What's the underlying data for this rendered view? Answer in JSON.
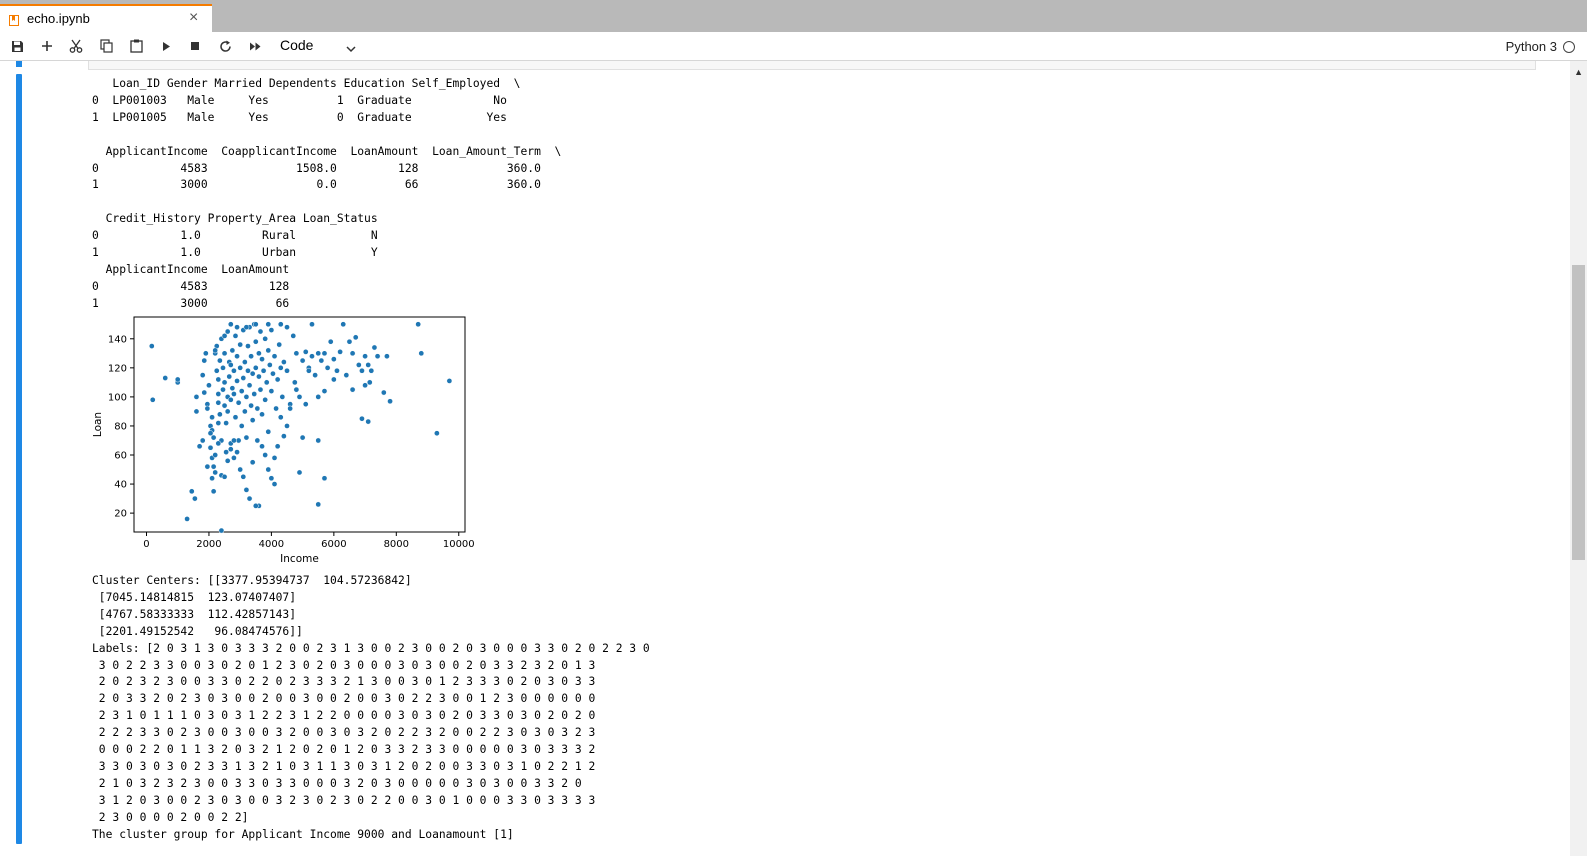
{
  "tab": {
    "title": "echo.ipynb",
    "close": "×"
  },
  "toolbar": {
    "icons": [
      "save-icon",
      "add-icon",
      "cut-icon",
      "copy-icon",
      "paste-icon",
      "run-icon",
      "stop-icon",
      "restart-icon",
      "run-all-icon",
      "chevron-down-icon"
    ],
    "cell_type": "Code",
    "kernel": "Python 3"
  },
  "output_text": "   Loan_ID Gender Married Dependents Education Self_Employed  \\\n0  LP001003   Male     Yes          1  Graduate            No\n1  LP001005   Male     Yes          0  Graduate           Yes\n\n  ApplicantIncome  CoapplicantIncome  LoanAmount  Loan_Amount_Term  \\\n0            4583             1508.0         128             360.0\n1            3000                0.0          66             360.0\n\n  Credit_History Property_Area Loan_Status\n0            1.0         Rural           N\n1            1.0         Urban           Y\n  ApplicantIncome  LoanAmount\n0            4583         128\n1            3000          66",
  "output_text2": "Cluster Centers: [[3377.95394737  104.57236842]\n [7045.14814815  123.07407407]\n [4767.58333333  112.42857143]\n [2201.49152542   96.08474576]]\nLabels: [2 0 3 1 3 0 3 3 3 2 0 0 2 3 1 3 0 0 2 3 0 0 2 0 3 0 0 0 3 3 0 2 0 2 2 3 0\n 3 0 2 2 3 3 0 0 3 0 2 0 1 2 3 0 2 0 3 0 0 0 3 0 3 0 0 2 0 3 3 2 3 2 0 1 3\n 2 0 2 3 2 3 0 0 3 3 0 2 2 0 2 3 3 3 2 1 3 0 0 3 0 1 2 3 3 3 0 2 0 3 0 3 3\n 2 0 3 3 2 0 2 3 0 3 0 0 2 0 0 3 0 0 2 0 0 3 0 2 2 3 0 0 1 2 3 0 0 0 0 0 0\n 2 3 1 0 1 1 1 0 3 0 3 1 2 2 3 1 2 2 0 0 0 0 3 0 3 0 2 0 3 3 0 3 0 2 0 2 0\n 2 2 2 3 3 0 2 3 0 0 3 0 0 3 2 0 0 3 0 3 2 0 2 2 3 2 0 0 2 2 3 0 3 0 3 2 3\n 0 0 0 2 2 0 1 1 3 2 0 3 2 1 2 0 2 0 1 2 0 3 3 2 3 3 0 0 0 0 0 3 0 3 3 3 2\n 3 3 0 3 0 3 0 2 3 3 1 3 2 1 0 3 1 1 3 0 3 1 2 0 2 0 0 3 3 0 3 1 0 2 2 1 2\n 2 1 0 3 2 3 2 3 0 0 3 3 0 3 3 0 0 0 3 2 0 3 0 0 0 0 0 3 0 3 0 0 3 3 2 0\n 3 1 2 0 3 0 0 2 3 0 3 0 0 3 2 3 0 2 3 0 2 2 0 0 3 0 1 0 0 0 3 3 0 3 3 3 3\n 2 3 0 0 0 0 2 0 0 2 2]\nThe cluster group for Applicant Income 9000 and Loanamount [1]",
  "chart_data": {
    "type": "scatter",
    "xlabel": "Income",
    "ylabel": "Loan",
    "xlim": [
      -400,
      10200
    ],
    "ylim": [
      7,
      155
    ],
    "xticks": [
      0,
      2000,
      4000,
      6000,
      8000,
      10000
    ],
    "yticks": [
      20,
      40,
      60,
      80,
      100,
      120,
      140
    ],
    "marker_color": "#1f77b4",
    "points": [
      [
        170,
        135
      ],
      [
        200,
        98
      ],
      [
        600,
        113
      ],
      [
        1000,
        110
      ],
      [
        1000,
        112
      ],
      [
        1300,
        16
      ],
      [
        1450,
        35
      ],
      [
        1550,
        30
      ],
      [
        1600,
        100
      ],
      [
        1800,
        115
      ],
      [
        1850,
        103
      ],
      [
        1850,
        125
      ],
      [
        1900,
        130
      ],
      [
        1950,
        95
      ],
      [
        1950,
        92
      ],
      [
        2000,
        108
      ],
      [
        2050,
        80
      ],
      [
        2100,
        86
      ],
      [
        2100,
        77
      ],
      [
        2050,
        65
      ],
      [
        2100,
        58
      ],
      [
        2150,
        72
      ],
      [
        2150,
        52
      ],
      [
        2200,
        60
      ],
      [
        2200,
        48
      ],
      [
        2100,
        44
      ],
      [
        1950,
        52
      ],
      [
        2200,
        130
      ],
      [
        2250,
        135
      ],
      [
        2250,
        118
      ],
      [
        2300,
        112
      ],
      [
        2300,
        102
      ],
      [
        2300,
        96
      ],
      [
        2350,
        125
      ],
      [
        2350,
        88
      ],
      [
        2400,
        140
      ],
      [
        2400,
        70
      ],
      [
        2400,
        46
      ],
      [
        2450,
        120
      ],
      [
        2450,
        105
      ],
      [
        2500,
        130
      ],
      [
        2500,
        110
      ],
      [
        2500,
        94
      ],
      [
        2550,
        82
      ],
      [
        2550,
        62
      ],
      [
        2600,
        145
      ],
      [
        2600,
        100
      ],
      [
        2600,
        90
      ],
      [
        2650,
        124
      ],
      [
        2650,
        114
      ],
      [
        2700,
        150
      ],
      [
        2700,
        98
      ],
      [
        2700,
        68
      ],
      [
        2750,
        106
      ],
      [
        2750,
        132
      ],
      [
        2800,
        118
      ],
      [
        2800,
        58
      ],
      [
        2850,
        142
      ],
      [
        2850,
        86
      ],
      [
        2900,
        111
      ],
      [
        2900,
        128
      ],
      [
        2950,
        96
      ],
      [
        2950,
        70
      ],
      [
        3000,
        136
      ],
      [
        3000,
        120
      ],
      [
        3050,
        104
      ],
      [
        3050,
        80
      ],
      [
        3100,
        146
      ],
      [
        3100,
        113
      ],
      [
        3150,
        90
      ],
      [
        3150,
        124
      ],
      [
        3200,
        100
      ],
      [
        3200,
        72
      ],
      [
        3250,
        135
      ],
      [
        3250,
        118
      ],
      [
        3300,
        148
      ],
      [
        3300,
        108
      ],
      [
        3350,
        128
      ],
      [
        3350,
        94
      ],
      [
        3400,
        116
      ],
      [
        3400,
        84
      ],
      [
        3450,
        150
      ],
      [
        3450,
        102
      ],
      [
        3500,
        138
      ],
      [
        3500,
        120
      ],
      [
        3550,
        92
      ],
      [
        3550,
        70
      ],
      [
        3600,
        130
      ],
      [
        3600,
        114
      ],
      [
        3650,
        105
      ],
      [
        3650,
        145
      ],
      [
        3700,
        126
      ],
      [
        3700,
        88
      ],
      [
        3750,
        118
      ],
      [
        3800,
        140
      ],
      [
        3800,
        98
      ],
      [
        3850,
        110
      ],
      [
        3900,
        132
      ],
      [
        3900,
        76
      ],
      [
        3950,
        122
      ],
      [
        4000,
        146
      ],
      [
        4000,
        104
      ],
      [
        4050,
        116
      ],
      [
        4100,
        128
      ],
      [
        4150,
        92
      ],
      [
        4200,
        112
      ],
      [
        4250,
        136
      ],
      [
        4300,
        120
      ],
      [
        4350,
        100
      ],
      [
        4400,
        124
      ],
      [
        4500,
        118
      ],
      [
        4600,
        95
      ],
      [
        4700,
        142
      ],
      [
        4750,
        110
      ],
      [
        4800,
        130
      ],
      [
        4900,
        100
      ],
      [
        5000,
        125
      ],
      [
        5100,
        131
      ],
      [
        5200,
        120
      ],
      [
        5300,
        128
      ],
      [
        5400,
        115
      ],
      [
        5500,
        100
      ],
      [
        5600,
        125
      ],
      [
        5700,
        130
      ],
      [
        5800,
        120
      ],
      [
        5900,
        138
      ],
      [
        6000,
        126
      ],
      [
        6100,
        118
      ],
      [
        6200,
        131
      ],
      [
        6300,
        150
      ],
      [
        6400,
        115
      ],
      [
        6500,
        138
      ],
      [
        6600,
        130
      ],
      [
        6700,
        141
      ],
      [
        6800,
        122
      ],
      [
        6900,
        118
      ],
      [
        7000,
        128
      ],
      [
        7100,
        122
      ],
      [
        7150,
        110
      ],
      [
        7200,
        118
      ],
      [
        7300,
        134
      ],
      [
        7400,
        128
      ],
      [
        7600,
        103
      ],
      [
        7700,
        128
      ],
      [
        7100,
        83
      ],
      [
        7000,
        108
      ],
      [
        6600,
        105
      ],
      [
        6000,
        112
      ],
      [
        5700,
        104
      ],
      [
        5500,
        130
      ],
      [
        5200,
        118
      ],
      [
        5100,
        95
      ],
      [
        5000,
        72
      ],
      [
        4900,
        48
      ],
      [
        5700,
        44
      ],
      [
        5500,
        26
      ],
      [
        5500,
        70
      ],
      [
        4500,
        80
      ],
      [
        4400,
        73
      ],
      [
        4300,
        86
      ],
      [
        4200,
        66
      ],
      [
        4100,
        58
      ],
      [
        4100,
        40
      ],
      [
        4000,
        44
      ],
      [
        3900,
        50
      ],
      [
        3800,
        60
      ],
      [
        3600,
        25
      ],
      [
        3500,
        25
      ],
      [
        3300,
        30
      ],
      [
        3200,
        36
      ],
      [
        3100,
        45
      ],
      [
        3000,
        50
      ],
      [
        2900,
        62
      ],
      [
        2800,
        70
      ],
      [
        2700,
        64
      ],
      [
        2600,
        56
      ],
      [
        2500,
        45
      ],
      [
        2300,
        68
      ],
      [
        2400,
        8
      ],
      [
        2150,
        35
      ],
      [
        2300,
        82
      ],
      [
        2050,
        75
      ],
      [
        1800,
        70
      ],
      [
        1700,
        66
      ],
      [
        1600,
        90
      ],
      [
        2700,
        122
      ],
      [
        2800,
        102
      ],
      [
        3400,
        55
      ],
      [
        3700,
        66
      ],
      [
        4600,
        92
      ],
      [
        4800,
        105
      ],
      [
        5300,
        150
      ],
      [
        4500,
        148
      ],
      [
        4300,
        150
      ],
      [
        3900,
        150
      ],
      [
        3500,
        150
      ],
      [
        3200,
        148
      ],
      [
        2900,
        148
      ],
      [
        2500,
        142
      ],
      [
        2200,
        132
      ],
      [
        8700,
        150
      ],
      [
        8800,
        130
      ],
      [
        9300,
        75
      ],
      [
        9700,
        111
      ],
      [
        7800,
        97
      ],
      [
        6900,
        85
      ]
    ]
  }
}
